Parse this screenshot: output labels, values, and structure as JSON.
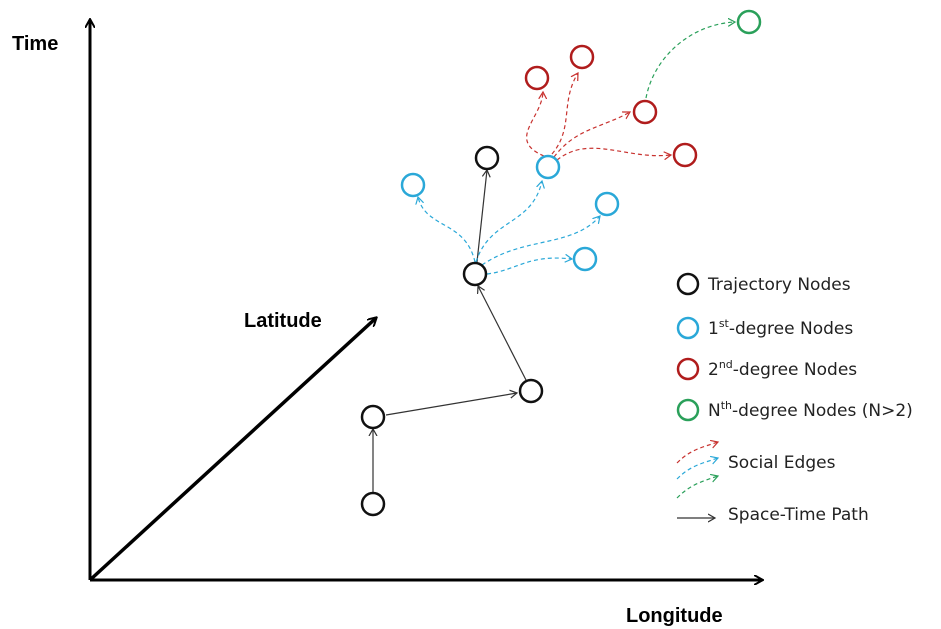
{
  "axes": {
    "time_label": "Time",
    "latitude_label": "Latitude",
    "longitude_label": "Longitude"
  },
  "colors": {
    "trajectory": "#111111",
    "first_degree": "#2aa8d8",
    "second_degree": "#b01c1c",
    "nth_degree": "#2aa05a",
    "red_edge": "#c8322f",
    "blue_edge": "#2aa8d8",
    "green_edge": "#2aa05a"
  },
  "legend": {
    "trajectory": "Trajectory Nodes",
    "first": {
      "prefix": "1",
      "sup": "st",
      "suffix": "-degree Nodes"
    },
    "second": {
      "prefix": "2",
      "sup": "nd",
      "suffix": "-degree Nodes"
    },
    "nth": {
      "prefix": "N",
      "sup": "th",
      "suffix": "-degree Nodes (N>2)"
    },
    "social_edges": "Social Edges",
    "space_time_path": "Space-Time Path"
  }
}
